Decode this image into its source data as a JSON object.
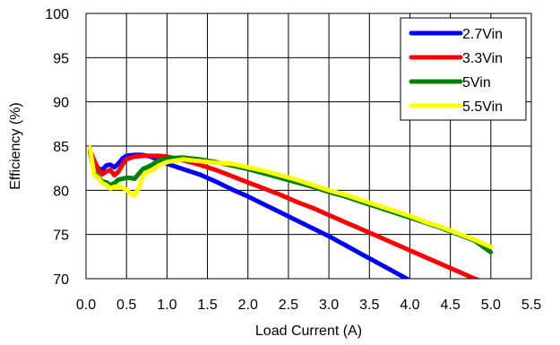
{
  "chart_data": {
    "type": "line",
    "title": "",
    "xlabel": "Load Current (A)",
    "ylabel": "Efficiency (%)",
    "xlim": [
      0,
      5.5
    ],
    "ylim": [
      70,
      100
    ],
    "xticks": [
      "0.0",
      "0.5",
      "1.0",
      "1.5",
      "2.0",
      "2.5",
      "3.0",
      "3.5",
      "4.0",
      "4.5",
      "5.0",
      "5.5"
    ],
    "yticks": [
      "70",
      "75",
      "80",
      "85",
      "90",
      "95",
      "100"
    ],
    "grid": true,
    "legend_position": "top-right",
    "series": [
      {
        "name": "2.7Vin",
        "color": "#0000ff",
        "x": [
          0.05,
          0.1,
          0.15,
          0.2,
          0.25,
          0.3,
          0.35,
          0.4,
          0.45,
          0.5,
          0.6,
          0.7,
          0.8,
          0.9,
          1.0,
          1.1,
          1.2,
          1.4,
          1.6,
          1.8,
          2.0,
          2.2,
          2.4,
          2.6,
          2.8,
          3.0,
          3.2,
          3.4,
          3.6,
          3.8,
          4.0,
          4.2
        ],
        "y": [
          84.5,
          83.0,
          82.5,
          82.3,
          82.8,
          82.9,
          82.6,
          83.0,
          83.6,
          83.9,
          84.0,
          84.0,
          83.8,
          83.4,
          83.0,
          82.7,
          82.4,
          81.8,
          81.0,
          80.1,
          79.3,
          78.4,
          77.5,
          76.6,
          75.7,
          74.8,
          73.8,
          72.8,
          71.8,
          70.8,
          69.8,
          69.0
        ]
      },
      {
        "name": "3.3Vin",
        "color": "#ff0000",
        "x": [
          0.05,
          0.1,
          0.15,
          0.2,
          0.25,
          0.3,
          0.35,
          0.4,
          0.45,
          0.5,
          0.6,
          0.7,
          0.8,
          0.9,
          1.0,
          1.2,
          1.4,
          1.6,
          1.8,
          2.0,
          2.2,
          2.4,
          2.6,
          2.8,
          3.0,
          3.2,
          3.4,
          3.6,
          3.8,
          4.0,
          4.2,
          4.4,
          4.6,
          4.8,
          5.0
        ],
        "y": [
          84.5,
          83.4,
          82.4,
          81.8,
          82.1,
          82.3,
          81.7,
          82.1,
          82.9,
          83.5,
          83.8,
          83.9,
          83.9,
          83.9,
          83.8,
          83.4,
          82.9,
          82.3,
          81.6,
          80.9,
          80.2,
          79.5,
          78.7,
          78.0,
          77.2,
          76.4,
          75.6,
          74.8,
          74.0,
          73.2,
          72.4,
          71.6,
          70.8,
          70.0,
          69.3
        ]
      },
      {
        "name": "5Vin",
        "color": "#008000",
        "x": [
          0.05,
          0.1,
          0.15,
          0.2,
          0.25,
          0.3,
          0.35,
          0.4,
          0.45,
          0.5,
          0.55,
          0.6,
          0.7,
          0.8,
          0.9,
          1.0,
          1.2,
          1.4,
          1.6,
          1.8,
          2.0,
          2.2,
          2.4,
          2.6,
          2.8,
          3.0,
          3.2,
          3.4,
          3.6,
          3.8,
          4.0,
          4.2,
          4.4,
          4.6,
          4.8,
          5.0
        ],
        "y": [
          84.3,
          82.2,
          81.5,
          81.0,
          80.9,
          80.6,
          80.8,
          81.2,
          81.3,
          81.4,
          81.4,
          81.3,
          82.4,
          82.8,
          83.4,
          83.6,
          83.7,
          83.5,
          83.2,
          82.8,
          82.4,
          81.9,
          81.4,
          80.9,
          80.4,
          79.8,
          79.3,
          78.7,
          78.1,
          77.5,
          76.9,
          76.3,
          75.7,
          75.0,
          74.3,
          73.0
        ]
      },
      {
        "name": "5.5Vin",
        "color": "#ffff00",
        "x": [
          0.05,
          0.1,
          0.15,
          0.2,
          0.25,
          0.3,
          0.35,
          0.4,
          0.45,
          0.5,
          0.55,
          0.6,
          0.65,
          0.7,
          0.75,
          0.8,
          0.9,
          1.0,
          1.2,
          1.4,
          1.6,
          1.8,
          2.0,
          2.2,
          2.4,
          2.6,
          2.8,
          3.0,
          3.2,
          3.4,
          3.6,
          3.8,
          4.0,
          4.2,
          4.4,
          4.6,
          4.8,
          5.0
        ],
        "y": [
          84.8,
          81.8,
          81.4,
          80.8,
          80.6,
          80.2,
          80.4,
          80.4,
          80.3,
          80.1,
          79.6,
          79.4,
          80.2,
          81.6,
          82.0,
          82.2,
          82.8,
          83.2,
          83.5,
          83.3,
          83.1,
          83.0,
          82.6,
          82.2,
          81.7,
          81.2,
          80.6,
          80.0,
          79.5,
          78.9,
          78.3,
          77.7,
          77.1,
          76.4,
          75.8,
          75.1,
          74.4,
          73.6
        ]
      }
    ]
  }
}
